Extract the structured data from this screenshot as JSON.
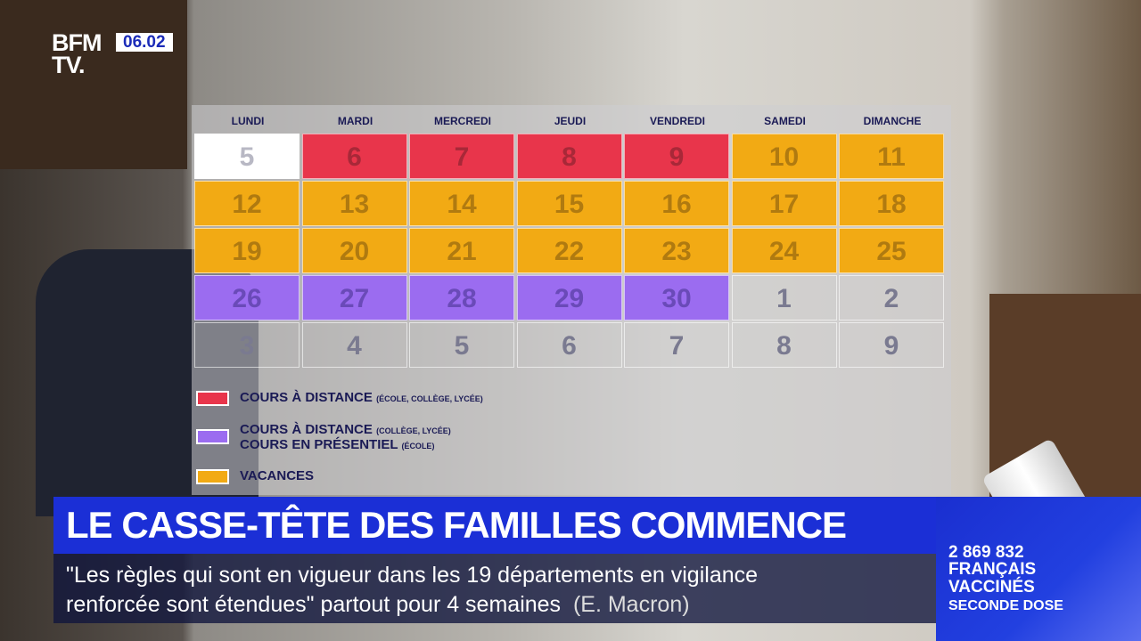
{
  "channel": {
    "logo_line1": "BFM",
    "logo_line2": "TV.",
    "date": "06.02"
  },
  "calendar": {
    "days": [
      "LUNDI",
      "MARDI",
      "MERCREDI",
      "JEUDI",
      "VENDREDI",
      "SAMEDI",
      "DIMANCHE"
    ],
    "colors": {
      "white": "#ffffff",
      "red": "#e8354b",
      "purple": "#9b6cf0",
      "orange": "#f2aa14",
      "none": "transparent"
    },
    "weeks": [
      [
        [
          "5",
          "white"
        ],
        [
          "6",
          "red"
        ],
        [
          "7",
          "red"
        ],
        [
          "8",
          "red"
        ],
        [
          "9",
          "red"
        ],
        [
          "10",
          "orange"
        ],
        [
          "11",
          "orange"
        ]
      ],
      [
        [
          "12",
          "orange"
        ],
        [
          "13",
          "orange"
        ],
        [
          "14",
          "orange"
        ],
        [
          "15",
          "orange"
        ],
        [
          "16",
          "orange"
        ],
        [
          "17",
          "orange"
        ],
        [
          "18",
          "orange"
        ]
      ],
      [
        [
          "19",
          "orange"
        ],
        [
          "20",
          "orange"
        ],
        [
          "21",
          "orange"
        ],
        [
          "22",
          "orange"
        ],
        [
          "23",
          "orange"
        ],
        [
          "24",
          "orange"
        ],
        [
          "25",
          "orange"
        ]
      ],
      [
        [
          "26",
          "purple"
        ],
        [
          "27",
          "purple"
        ],
        [
          "28",
          "purple"
        ],
        [
          "29",
          "purple"
        ],
        [
          "30",
          "purple"
        ],
        [
          "1",
          "none"
        ],
        [
          "2",
          "none"
        ]
      ],
      [
        [
          "3",
          "none"
        ],
        [
          "4",
          "none"
        ],
        [
          "5",
          "none"
        ],
        [
          "6",
          "none"
        ],
        [
          "7",
          "none"
        ],
        [
          "8",
          "none"
        ],
        [
          "9",
          "none"
        ]
      ]
    ],
    "legend": [
      {
        "color": "#e8354b",
        "line1": "COURS À DISTANCE",
        "note1": "(ÉCOLE, COLLÈGE, LYCÉE)"
      },
      {
        "color": "#9b6cf0",
        "line1": "COURS À DISTANCE",
        "note1": "(COLLÈGE, LYCÉE)",
        "line2": "COURS EN PRÉSENTIEL",
        "note2": "(ÉCOLE)"
      },
      {
        "color": "#f2aa14",
        "line1": "VACANCES"
      }
    ]
  },
  "headline": "LE CASSE-TÊTE DES FAMILLES COMMENCE",
  "ticker": {
    "line1": "\"Les règles qui sont en vigueur dans les 19 départements en vigilance",
    "line2": "renforcée sont étendues\" partout pour 4 semaines",
    "source": "(E. Macron)"
  },
  "side": {
    "count": "2 869 832",
    "line2": "FRANÇAIS",
    "line3": "VACCINÉS",
    "line4": "SECONDE DOSE"
  }
}
